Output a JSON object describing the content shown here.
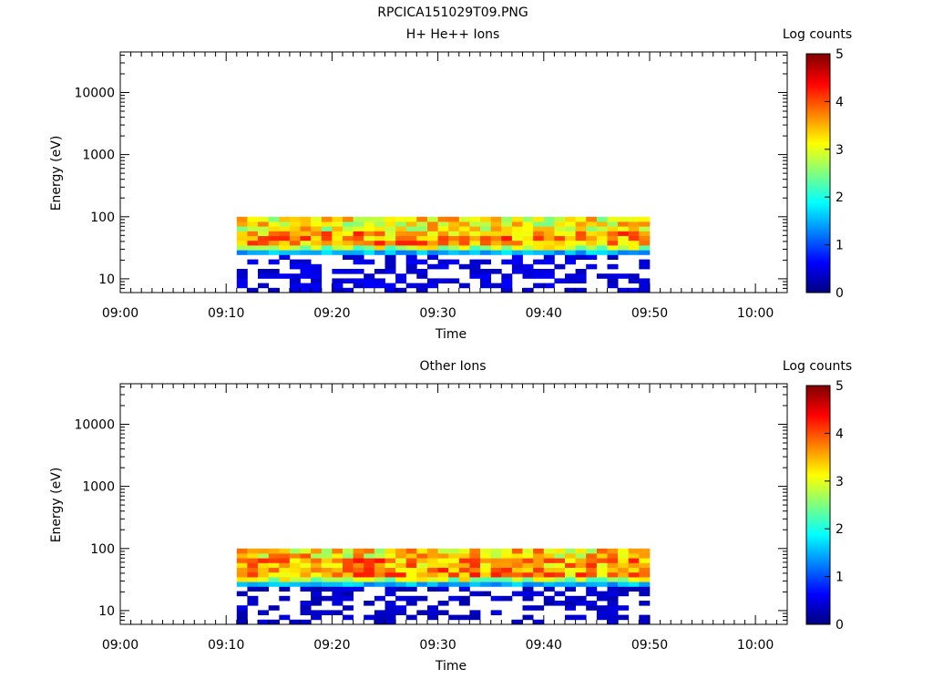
{
  "figure_title": "RPCICA151029T09.PNG",
  "chart_data": [
    {
      "type": "heatmap",
      "title": "H+ He++ Ions",
      "xlabel": "Time",
      "ylabel": "Energy (eV)",
      "y_scale": "log",
      "ylim": [
        6,
        45000
      ],
      "y_ticks": [
        10,
        100,
        1000,
        10000
      ],
      "y_tick_labels": [
        "10",
        "100",
        "1000",
        "10000"
      ],
      "x_range": [
        "09:00",
        "10:03"
      ],
      "x_ticks": [
        "09:00",
        "09:10",
        "09:20",
        "09:30",
        "09:40",
        "09:50",
        "10:00"
      ],
      "data_time_range": [
        "09:11",
        "09:50"
      ],
      "data_energy_range_eV": [
        6,
        100
      ],
      "colorbar": {
        "label": "Log counts",
        "range": [
          0,
          5
        ],
        "ticks": [
          "0",
          "1",
          "2",
          "3",
          "4",
          "5"
        ],
        "colormap": [
          "#000080",
          "#0000ff",
          "#00ffff",
          "#ffff00",
          "#ff0000",
          "#800000"
        ]
      },
      "summary": {
        "peak_band_eV": [
          35,
          60
        ],
        "peak_log_counts": 4.3,
        "upper_band_eV": [
          60,
          100
        ],
        "upper_band_log_counts": 3.1,
        "low_energy_eV": [
          6,
          25
        ],
        "low_energy_log_counts": 0.3
      }
    },
    {
      "type": "heatmap",
      "title": "Other Ions",
      "xlabel": "Time",
      "ylabel": "Energy (eV)",
      "y_scale": "log",
      "ylim": [
        6,
        45000
      ],
      "y_ticks": [
        10,
        100,
        1000,
        10000
      ],
      "y_tick_labels": [
        "10",
        "100",
        "1000",
        "10000"
      ],
      "x_range": [
        "09:00",
        "10:03"
      ],
      "x_ticks": [
        "09:00",
        "09:10",
        "09:20",
        "09:30",
        "09:40",
        "09:50",
        "10:00"
      ],
      "data_time_range": [
        "09:11",
        "09:50"
      ],
      "data_energy_range_eV": [
        6,
        100
      ],
      "colorbar": {
        "label": "Log counts",
        "range": [
          0,
          5
        ],
        "ticks": [
          "0",
          "1",
          "2",
          "3",
          "4",
          "5"
        ],
        "colormap": [
          "#000080",
          "#0000ff",
          "#00ffff",
          "#ffff00",
          "#ff0000",
          "#800000"
        ]
      },
      "summary": {
        "peak_band_eV": [
          35,
          65
        ],
        "peak_log_counts": 4.3,
        "upper_band_eV": [
          65,
          100
        ],
        "upper_band_log_counts": 3.3,
        "low_energy_eV": [
          6,
          25
        ],
        "low_energy_log_counts": 0.2
      }
    }
  ]
}
